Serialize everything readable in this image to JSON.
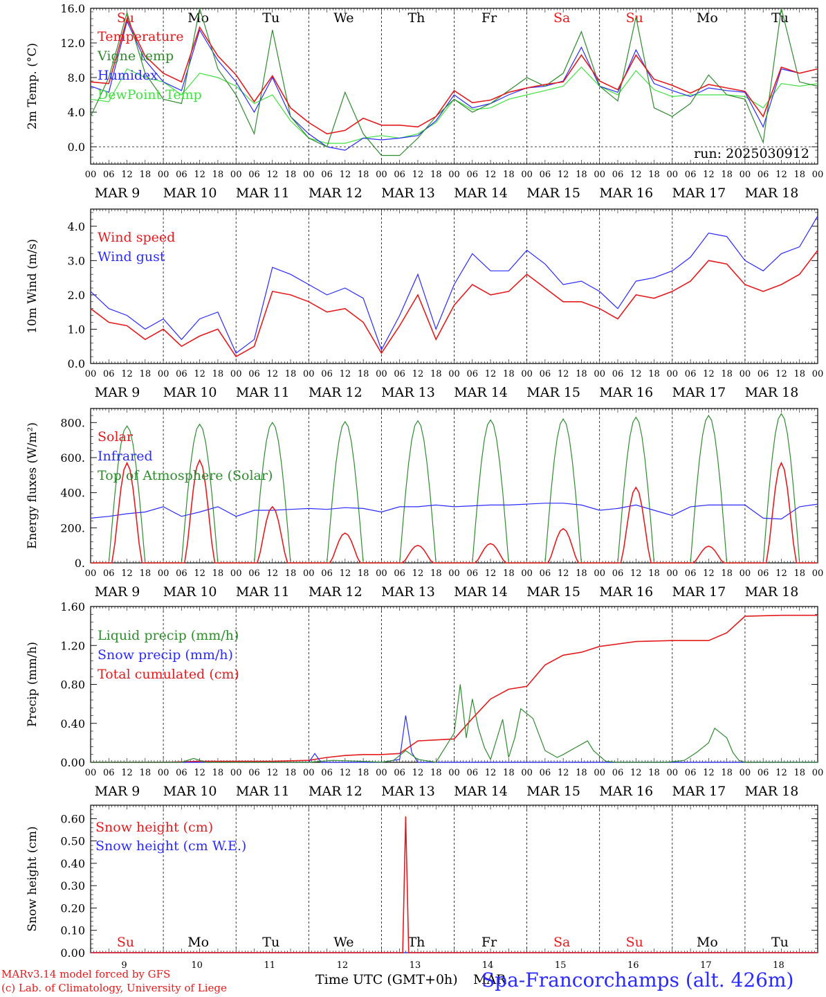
{
  "days": [
    "9",
    "10",
    "11",
    "12",
    "13",
    "14",
    "15",
    "16",
    "17",
    "18"
  ],
  "weekdays": [
    "Su",
    "Mo",
    "Tu",
    "We",
    "Th",
    "Fr",
    "Sa",
    "Su",
    "Mo",
    "Tu"
  ],
  "weekday_colors": [
    "#e41a1c",
    "#000000",
    "#000000",
    "#000000",
    "#000000",
    "#000000",
    "#e41a1c",
    "#e41a1c",
    "#000000",
    "#000000"
  ],
  "date_labels": [
    "MAR  9",
    "MAR 10",
    "MAR 11",
    "MAR 12",
    "MAR 13",
    "MAR 14",
    "MAR 15",
    "MAR 16",
    "MAR 17",
    "MAR 18"
  ],
  "hour_labels": [
    "00",
    "06",
    "12",
    "18"
  ],
  "hour_label_end": "00",
  "footer": {
    "credit_line1": "MARv3.14 model forced by GFS",
    "credit_line2": "(c) Lab. of Climatology, University of Liege",
    "xaxis_label": "Time UTC (GMT+0h)",
    "xaxis_month": "MAR",
    "station": "Spa-Francorchamps (alt. 426m)"
  },
  "colors": {
    "red": "#e41a1c",
    "green": "#2e8b2e",
    "blue": "#2a2aff",
    "lightgreen": "#40e040",
    "grid": "#000000"
  },
  "chart_data": [
    {
      "type": "line",
      "ylabel": "2m Temp. (°C)",
      "ylim": [
        -2,
        16
      ],
      "yticks": [
        0,
        4,
        8,
        12,
        16
      ],
      "ytick_labels": [
        "0.0",
        "4.0",
        "8.0",
        "12.0",
        "16.0"
      ],
      "dashed_zero": true,
      "weekday_row": "top",
      "annotation": "run: 2025030912",
      "x_unit": "hours since MAR 9 00 UTC",
      "series": [
        {
          "name": "Temperature",
          "color": "red",
          "x": [
            0,
            6,
            12,
            18,
            24,
            30,
            36,
            42,
            48,
            54,
            60,
            66,
            72,
            78,
            84,
            90,
            96,
            102,
            108,
            114,
            120,
            126,
            132,
            138,
            144,
            150,
            156,
            162,
            168,
            174,
            180,
            186,
            192,
            198,
            204,
            210,
            216,
            222,
            228,
            234,
            240
          ],
          "y": [
            7.5,
            7.3,
            14.8,
            10.5,
            8.5,
            7.5,
            13.8,
            10.5,
            8.3,
            5.2,
            8.2,
            4.5,
            2.8,
            1.5,
            1.9,
            3.3,
            2.5,
            2.5,
            2.3,
            3.5,
            6.5,
            5.1,
            5.4,
            6.3,
            6.8,
            7.2,
            7.5,
            10.6,
            7.6,
            6.6,
            10.6,
            7.8,
            7.1,
            6.2,
            7.2,
            6.8,
            6.4,
            3.5,
            9.2,
            8.5,
            9.0
          ]
        },
        {
          "name": "Vigne temp",
          "color": "green",
          "x": [
            0,
            6,
            12,
            18,
            24,
            30,
            36,
            42,
            48,
            54,
            60,
            66,
            72,
            78,
            84,
            90,
            96,
            102,
            108,
            114,
            120,
            126,
            132,
            138,
            144,
            150,
            156,
            162,
            168,
            174,
            180,
            186,
            192,
            198,
            204,
            210,
            216,
            222,
            228,
            234,
            240
          ],
          "y": [
            3.5,
            8.0,
            15.5,
            8.5,
            5.5,
            5.0,
            16.0,
            9.0,
            6.0,
            1.5,
            13.5,
            3.5,
            1.0,
            0.0,
            6.3,
            1.5,
            -1.0,
            -1.0,
            1.0,
            3.5,
            5.5,
            4.0,
            5.0,
            6.5,
            8.0,
            7.0,
            8.5,
            13.3,
            7.0,
            5.3,
            15.0,
            4.5,
            3.5,
            5.0,
            8.3,
            6.0,
            5.5,
            0.5,
            16.0,
            7.5,
            7.0
          ]
        },
        {
          "name": "Humidex",
          "color": "blue",
          "x": [
            0,
            6,
            12,
            18,
            24,
            30,
            36,
            42,
            48,
            54,
            60,
            66,
            72,
            78,
            84,
            90,
            96,
            102,
            108,
            114,
            120,
            126,
            132,
            138,
            144,
            150,
            156,
            162,
            168,
            174,
            180,
            186,
            192,
            198,
            204,
            210,
            216,
            222,
            228,
            234,
            240
          ],
          "y": [
            7.0,
            6.3,
            14.5,
            10.0,
            7.5,
            6.5,
            13.5,
            10.0,
            7.5,
            4.0,
            8.0,
            3.5,
            1.5,
            0.0,
            -0.4,
            1.0,
            0.8,
            1.0,
            1.3,
            3.0,
            6.0,
            4.5,
            5.0,
            6.0,
            6.8,
            7.0,
            7.6,
            11.5,
            7.0,
            6.3,
            11.2,
            7.3,
            6.5,
            5.8,
            6.8,
            6.5,
            6.3,
            2.3,
            9.0,
            8.5,
            9.0
          ]
        },
        {
          "name": "DewPoint Temp",
          "color": "lightgreen",
          "x": [
            0,
            6,
            12,
            18,
            24,
            30,
            36,
            42,
            48,
            54,
            60,
            66,
            72,
            78,
            84,
            90,
            96,
            102,
            108,
            114,
            120,
            126,
            132,
            138,
            144,
            150,
            156,
            162,
            168,
            174,
            180,
            186,
            192,
            198,
            204,
            210,
            216,
            222,
            228,
            234,
            240
          ],
          "y": [
            5.5,
            5.2,
            9.0,
            8.0,
            7.5,
            6.0,
            8.5,
            8.0,
            7.0,
            5.0,
            6.0,
            3.0,
            1.0,
            0.4,
            0.4,
            1.0,
            1.3,
            1.0,
            1.5,
            2.8,
            5.5,
            4.3,
            4.5,
            5.5,
            6.0,
            6.5,
            7.0,
            9.2,
            7.0,
            6.0,
            8.8,
            6.6,
            5.8,
            6.0,
            6.0,
            6.0,
            5.8,
            4.5,
            7.3,
            7.0,
            7.3
          ]
        }
      ]
    },
    {
      "type": "line",
      "ylabel": "10m Wind (m/s)",
      "ylim": [
        0,
        4.5
      ],
      "yticks": [
        0,
        1,
        2,
        3,
        4
      ],
      "ytick_labels": [
        "0.0",
        "1.0",
        "2.0",
        "3.0",
        "4.0"
      ],
      "x_unit": "hours since MAR 9 00 UTC",
      "series": [
        {
          "name": "Wind speed",
          "color": "red",
          "x": [
            0,
            6,
            12,
            18,
            24,
            30,
            36,
            42,
            48,
            54,
            60,
            66,
            72,
            78,
            84,
            90,
            96,
            102,
            108,
            114,
            120,
            126,
            132,
            138,
            144,
            150,
            156,
            162,
            168,
            174,
            180,
            186,
            192,
            198,
            204,
            210,
            216,
            222,
            228,
            234,
            240
          ],
          "y": [
            1.6,
            1.2,
            1.1,
            0.7,
            1.0,
            0.5,
            0.8,
            1.0,
            0.2,
            0.5,
            2.1,
            2.0,
            1.8,
            1.5,
            1.6,
            1.2,
            0.3,
            1.1,
            2.0,
            0.7,
            1.7,
            2.3,
            2.0,
            2.1,
            2.6,
            2.2,
            1.8,
            1.8,
            1.6,
            1.3,
            2.0,
            1.9,
            2.1,
            2.4,
            3.0,
            2.9,
            2.3,
            2.1,
            2.3,
            2.6,
            3.3
          ]
        },
        {
          "name": "Wind gust",
          "color": "blue",
          "x": [
            0,
            6,
            12,
            18,
            24,
            30,
            36,
            42,
            48,
            54,
            60,
            66,
            72,
            78,
            84,
            90,
            96,
            102,
            108,
            114,
            120,
            126,
            132,
            138,
            144,
            150,
            156,
            162,
            168,
            174,
            180,
            186,
            192,
            198,
            204,
            210,
            216,
            222,
            228,
            234,
            240
          ],
          "y": [
            2.1,
            1.6,
            1.4,
            1.0,
            1.3,
            0.7,
            1.3,
            1.5,
            0.3,
            0.7,
            2.8,
            2.6,
            2.3,
            2.0,
            2.2,
            1.9,
            0.4,
            1.4,
            2.6,
            1.0,
            2.3,
            3.2,
            2.7,
            2.7,
            3.3,
            2.9,
            2.3,
            2.4,
            2.1,
            1.6,
            2.4,
            2.5,
            2.7,
            3.1,
            3.8,
            3.7,
            3.0,
            2.7,
            3.2,
            3.4,
            4.3
          ]
        }
      ]
    },
    {
      "type": "line",
      "ylabel": "Energy fluxes (W/m²)",
      "ylim": [
        0,
        880
      ],
      "yticks": [
        0,
        200,
        400,
        600,
        800
      ],
      "ytick_labels": [
        "0.",
        "200.",
        "400.",
        "600.",
        "800."
      ],
      "x_unit": "hours since MAR 9 00 UTC",
      "series": [
        {
          "name": "Solar",
          "color": "red",
          "day_peaks": [
            570,
            585,
            320,
            170,
            100,
            110,
            195,
            430,
            95,
            570
          ]
        },
        {
          "name": "Infrared",
          "color": "blue",
          "x": [
            0,
            6,
            12,
            18,
            24,
            30,
            36,
            42,
            48,
            54,
            60,
            66,
            72,
            78,
            84,
            90,
            96,
            102,
            108,
            114,
            120,
            126,
            132,
            138,
            144,
            150,
            156,
            162,
            168,
            174,
            180,
            186,
            192,
            198,
            204,
            210,
            216,
            222,
            228,
            234,
            240
          ],
          "y": [
            255,
            265,
            280,
            290,
            320,
            265,
            290,
            320,
            265,
            300,
            300,
            305,
            310,
            305,
            315,
            310,
            290,
            320,
            320,
            330,
            320,
            325,
            330,
            330,
            335,
            340,
            340,
            330,
            300,
            310,
            330,
            300,
            270,
            320,
            330,
            330,
            330,
            255,
            250,
            320,
            335
          ]
        },
        {
          "name": "Top of Atmosphere (Solar)",
          "color": "green",
          "day_peaks": [
            780,
            790,
            800,
            805,
            810,
            815,
            820,
            830,
            840,
            850
          ]
        }
      ]
    },
    {
      "type": "line",
      "ylabel": "Precip (mm/h)",
      "ylim": [
        0,
        1.6
      ],
      "yticks": [
        0,
        0.4,
        0.8,
        1.2,
        1.6
      ],
      "ytick_labels": [
        "0.00",
        "0.40",
        "0.80",
        "1.20",
        "1.60"
      ],
      "x_unit": "hours since MAR 9 00 UTC",
      "series": [
        {
          "name": "Liquid precip (mm/h)",
          "color": "green",
          "x": [
            0,
            24,
            30,
            34,
            38,
            72,
            80,
            90,
            96,
            100,
            104,
            108,
            114,
            120,
            122,
            124,
            126,
            128,
            130,
            132,
            136,
            138,
            140,
            142,
            146,
            150,
            154,
            156,
            160,
            164,
            166,
            170,
            174,
            180,
            190,
            196,
            200,
            204,
            206,
            210,
            212,
            214,
            216,
            240
          ],
          "y": [
            0,
            0,
            0,
            0.04,
            0,
            0,
            0.02,
            0.01,
            0,
            0.02,
            0.12,
            0.03,
            0,
            0.3,
            0.8,
            0.25,
            0.65,
            0.35,
            0.15,
            0.03,
            0.44,
            0.05,
            0.25,
            0.55,
            0.45,
            0.12,
            0.05,
            0.08,
            0.15,
            0.22,
            0.12,
            0.01,
            0,
            0,
            0,
            0.02,
            0.1,
            0.2,
            0.35,
            0.25,
            0.1,
            0.02,
            0,
            0
          ]
        },
        {
          "name": "Snow precip (mm/h)",
          "color": "blue",
          "x": [
            0,
            72,
            74,
            76,
            78,
            96,
            102,
            104,
            106,
            108,
            114,
            240
          ],
          "y": [
            0,
            0,
            0.09,
            0,
            0,
            0,
            0.03,
            0.48,
            0.1,
            0,
            0,
            0
          ]
        },
        {
          "name": "Total cumulated (cm)",
          "color": "red",
          "x": [
            0,
            24,
            36,
            48,
            60,
            72,
            78,
            84,
            90,
            96,
            102,
            108,
            114,
            120,
            126,
            132,
            138,
            144,
            150,
            156,
            162,
            168,
            180,
            192,
            198,
            204,
            210,
            216,
            228,
            240
          ],
          "y": [
            0,
            0,
            0.01,
            0.01,
            0.01,
            0.02,
            0.05,
            0.07,
            0.08,
            0.08,
            0.09,
            0.22,
            0.23,
            0.24,
            0.45,
            0.65,
            0.75,
            0.78,
            1.0,
            1.1,
            1.13,
            1.19,
            1.24,
            1.25,
            1.25,
            1.25,
            1.33,
            1.5,
            1.51,
            1.51
          ]
        }
      ]
    },
    {
      "type": "line",
      "ylabel": "Snow height (cm)",
      "ylim": [
        0,
        0.66
      ],
      "yticks": [
        0,
        0.1,
        0.2,
        0.3,
        0.4,
        0.5,
        0.6
      ],
      "ytick_labels": [
        "0.00",
        "0.10",
        "0.20",
        "0.30",
        "0.40",
        "0.50",
        "0.60"
      ],
      "weekday_row": "bottom",
      "x_unit": "hours since MAR 9 00 UTC",
      "series": [
        {
          "name": "Snow height (cm)",
          "color": "red",
          "x": [
            0,
            103,
            104,
            105,
            240
          ],
          "y": [
            0,
            0,
            0.61,
            0,
            0
          ]
        },
        {
          "name": "Snow height (cm W.E.)",
          "color": "blue",
          "x": [
            0,
            240
          ],
          "y": [
            0,
            0
          ]
        }
      ]
    }
  ]
}
